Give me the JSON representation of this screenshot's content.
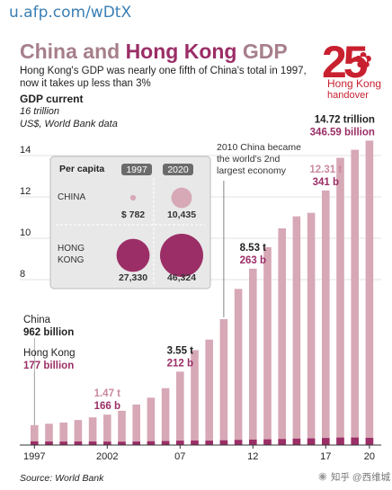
{
  "header": {
    "url": "u.afp.com/wDtX",
    "title_part1": "China",
    "title_and": " and ",
    "title_part2": "Hong Kong",
    "title_part3": " GDP",
    "subtitle": "Hong Kong's GDP was nearly one fifth of China's total  in 1997, now it takes up less than 3%",
    "gdp_label": "GDP current",
    "unit_line1": "16 trillion",
    "unit_line2": "US$, World Bank data"
  },
  "logo": {
    "number": "25",
    "line1": "Hong Kong",
    "line2": "handover"
  },
  "footer": {
    "source": "Source: World Bank",
    "watermark": "知乎 @西维城"
  },
  "colors": {
    "china": "#d7a8b6",
    "hongkong": "#9b2e66",
    "china_text": "#c98a9e",
    "title_grey": "#a67f8a"
  },
  "chart_data": {
    "type": "bar",
    "title": "China and Hong Kong GDP",
    "ylabel": "GDP current",
    "ylim": [
      0,
      16
    ],
    "yticks": [
      8,
      10,
      12,
      14
    ],
    "ytick_labels": [
      "8",
      "10",
      "12",
      "14"
    ],
    "categories": [
      1997,
      1998,
      1999,
      2000,
      2001,
      2002,
      2003,
      2004,
      2005,
      2006,
      2007,
      2008,
      2009,
      2010,
      2011,
      2012,
      2013,
      2014,
      2015,
      2016,
      2017,
      2018,
      2019,
      2020
    ],
    "xtick_labels": [
      {
        "year": 1997,
        "label": "1997"
      },
      {
        "year": 2002,
        "label": "2002"
      },
      {
        "year": 2007,
        "label": "07"
      },
      {
        "year": 2012,
        "label": "12"
      },
      {
        "year": 2017,
        "label": "17"
      },
      {
        "year": 2020,
        "label": "20"
      }
    ],
    "series": [
      {
        "name": "China",
        "unit": "US$ trillion",
        "values": [
          0.962,
          1.03,
          1.09,
          1.21,
          1.34,
          1.47,
          1.66,
          1.96,
          2.29,
          2.75,
          3.55,
          4.59,
          5.1,
          6.09,
          7.55,
          8.53,
          9.57,
          10.48,
          11.06,
          11.23,
          12.31,
          13.89,
          14.28,
          14.72
        ]
      },
      {
        "name": "Hong Kong",
        "unit": "US$ billion",
        "values": [
          177,
          169,
          166,
          172,
          170,
          166,
          161,
          169,
          182,
          194,
          212,
          220,
          214,
          229,
          249,
          263,
          276,
          291,
          309,
          321,
          341,
          362,
          363,
          346.59
        ]
      }
    ],
    "annotations": [
      {
        "year": 1997,
        "line1": "China",
        "line2": "962 billion",
        "style": "china-dark"
      },
      {
        "year": 1997,
        "line1": "Hong Kong",
        "line2": "177 billion",
        "style": "hk"
      },
      {
        "year": 2002,
        "line1": "1.47 t",
        "line2": "166 b",
        "style": "pair-light"
      },
      {
        "year": 2007,
        "line1": "3.55 t",
        "line2": "212 b",
        "style": "pair-dark"
      },
      {
        "year": 2012,
        "line1": "8.53 t",
        "line2": "263 b",
        "style": "pair-dark"
      },
      {
        "year": 2017,
        "line1": "12.31 t",
        "line2": "341 b",
        "style": "pair-light"
      },
      {
        "year": 2020,
        "line1": "14.72 trillion",
        "line2": "346.59 billion",
        "style": "pair-dark"
      }
    ],
    "note": {
      "year": 2010,
      "text": [
        "2010 China became",
        "the world's 2nd",
        "largest economy"
      ]
    },
    "inset": {
      "title": "Per capita",
      "year1": "1997",
      "year2": "2020",
      "rows": [
        {
          "name": [
            "CHINA"
          ],
          "v1": 782,
          "v1_label": "$ 782",
          "v2": 10435,
          "v2_label": "10,435"
        },
        {
          "name": [
            "HONG",
            "KONG"
          ],
          "v1": 27330,
          "v1_label": "27,330",
          "v2": 46324,
          "v2_label": "46,324"
        }
      ]
    }
  }
}
